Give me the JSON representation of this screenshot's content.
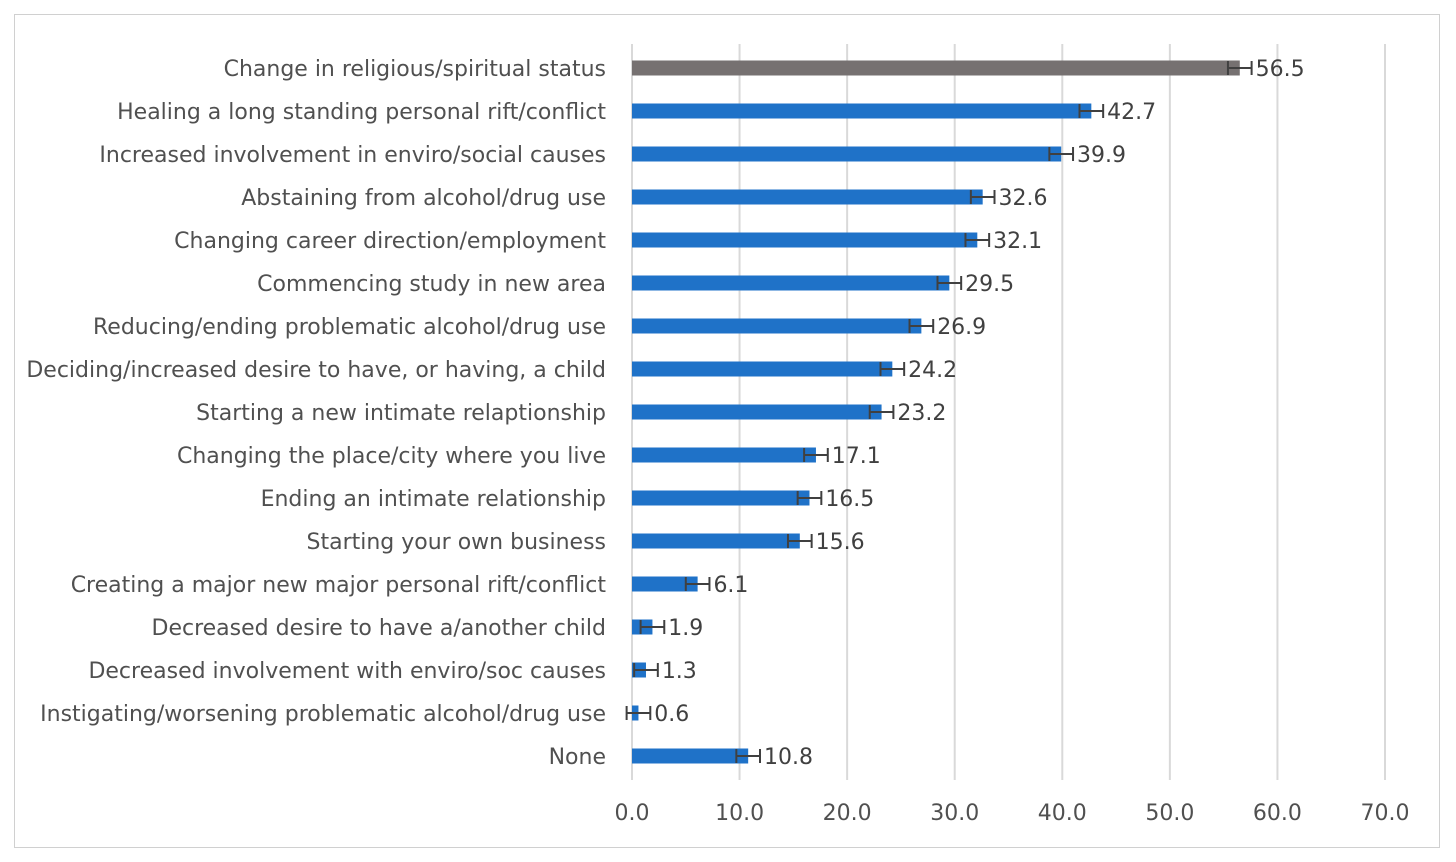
{
  "chart_data": {
    "type": "bar",
    "orientation": "horizontal",
    "title": "",
    "xlabel": "",
    "ylabel": "",
    "xlim": [
      0,
      70
    ],
    "ticks": [
      "0.0",
      "10.0",
      "20.0",
      "30.0",
      "40.0",
      "50.0",
      "60.0",
      "70.0"
    ],
    "tick_values": [
      0,
      10,
      20,
      30,
      40,
      50,
      60,
      70
    ],
    "grid": true,
    "error_bar": 1.1,
    "colors": {
      "default": "#1f72c8",
      "highlight": "#767171",
      "error": "#404040",
      "grid": "#d9d9d9"
    },
    "categories": [
      "Change in religious/spiritual status",
      "Healing a long standing personal rift/conflict",
      "Increased involvement in enviro/social causes",
      "Abstaining from alcohol/drug use",
      "Changing career direction/employment",
      "Commencing study in new area",
      "Reducing/ending problematic alcohol/drug use",
      "Deciding/increased desire to have, or having, a child",
      "Starting a new intimate relaptionship",
      "Changing the place/city where you live",
      "Ending an intimate relationship",
      "Starting your own business",
      "Creating a major new major personal rift/conflict",
      "Decreased desire to have a/another child",
      "Decreased involvement with enviro/soc causes",
      "Instigating/worsening problematic alcohol/drug use",
      "None"
    ],
    "values": [
      56.5,
      42.7,
      39.9,
      32.6,
      32.1,
      29.5,
      26.9,
      24.2,
      23.2,
      17.1,
      16.5,
      15.6,
      6.1,
      1.9,
      1.3,
      0.6,
      10.8
    ],
    "labels": [
      "56.5",
      "42.7",
      "39.9",
      "32.6",
      "32.1",
      "29.5",
      "26.9",
      "24.2",
      "23.2",
      "17.1",
      "16.5",
      "15.6",
      "6.1",
      "1.9",
      "1.3",
      "0.6",
      "10.8"
    ],
    "highlight_index": 0
  }
}
